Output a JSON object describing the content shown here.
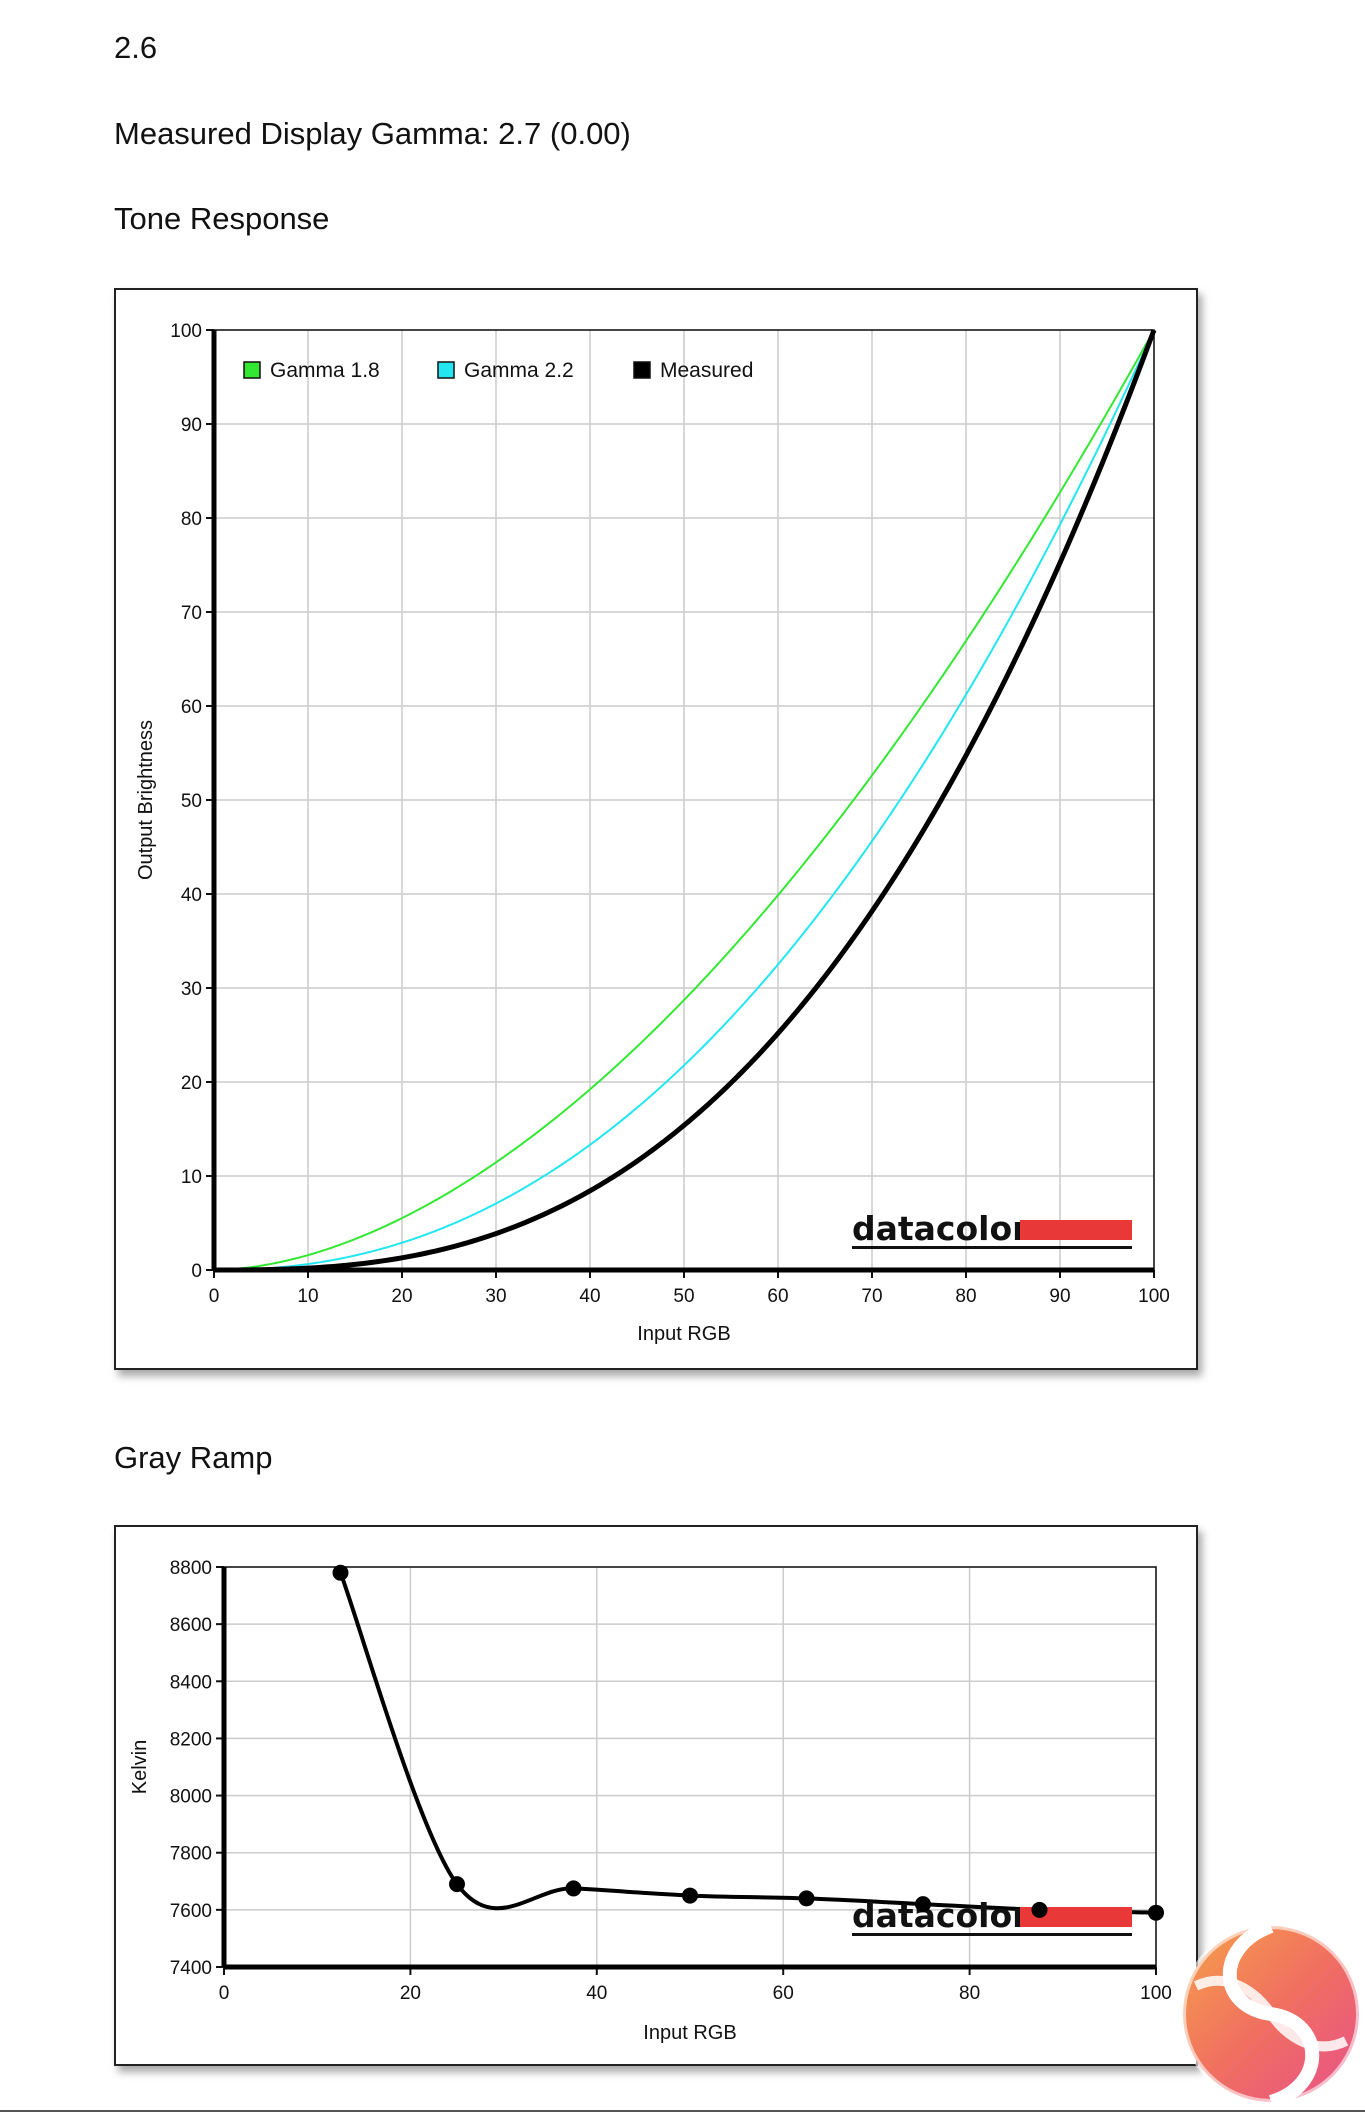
{
  "page": {
    "top_value": "2.6",
    "measured_gamma": "Measured Display Gamma: 2.7 (0.00)",
    "section1_title": "Tone Response",
    "section2_title": "Gray Ramp",
    "brand_logo_text": "datacolor"
  },
  "colors": {
    "gamma18": "#33e833",
    "gamma22": "#22e6f0",
    "measured": "#000000",
    "brand_red": "#e83838",
    "grid": "#cccccc"
  },
  "chart_data": [
    {
      "type": "line",
      "xlabel": "Input RGB",
      "ylabel": "Output Brightness",
      "xlim": [
        0,
        100
      ],
      "ylim": [
        0,
        100
      ],
      "xticks": [
        "0",
        "10",
        "20",
        "30",
        "40",
        "50",
        "60",
        "70",
        "80",
        "90",
        "100"
      ],
      "yticks": [
        "0",
        "10",
        "20",
        "30",
        "40",
        "50",
        "60",
        "70",
        "80",
        "90",
        "100"
      ],
      "legend": "top-left",
      "grid": true,
      "series": [
        {
          "name": "Gamma 1.8",
          "gamma": 1.8,
          "color": "#33e833"
        },
        {
          "name": "Gamma 2.2",
          "gamma": 2.2,
          "color": "#22e6f0"
        },
        {
          "name": "Measured",
          "gamma": 2.7,
          "color": "#000000"
        }
      ]
    },
    {
      "type": "line",
      "xlabel": "Input RGB",
      "ylabel": "Kelvin",
      "xlim": [
        0,
        100
      ],
      "ylim": [
        7400,
        8800
      ],
      "xticks": [
        "0",
        "20",
        "40",
        "60",
        "80",
        "100"
      ],
      "yticks": [
        "7400",
        "7600",
        "7800",
        "8000",
        "8200",
        "8400",
        "8600",
        "8800"
      ],
      "grid": true,
      "series": [
        {
          "x": [
            12.5,
            25,
            37.5,
            50,
            62.5,
            75,
            87.5,
            100
          ],
          "y": [
            8780,
            7690,
            7675,
            7650,
            7640,
            7620,
            7600,
            7590
          ]
        }
      ]
    }
  ]
}
